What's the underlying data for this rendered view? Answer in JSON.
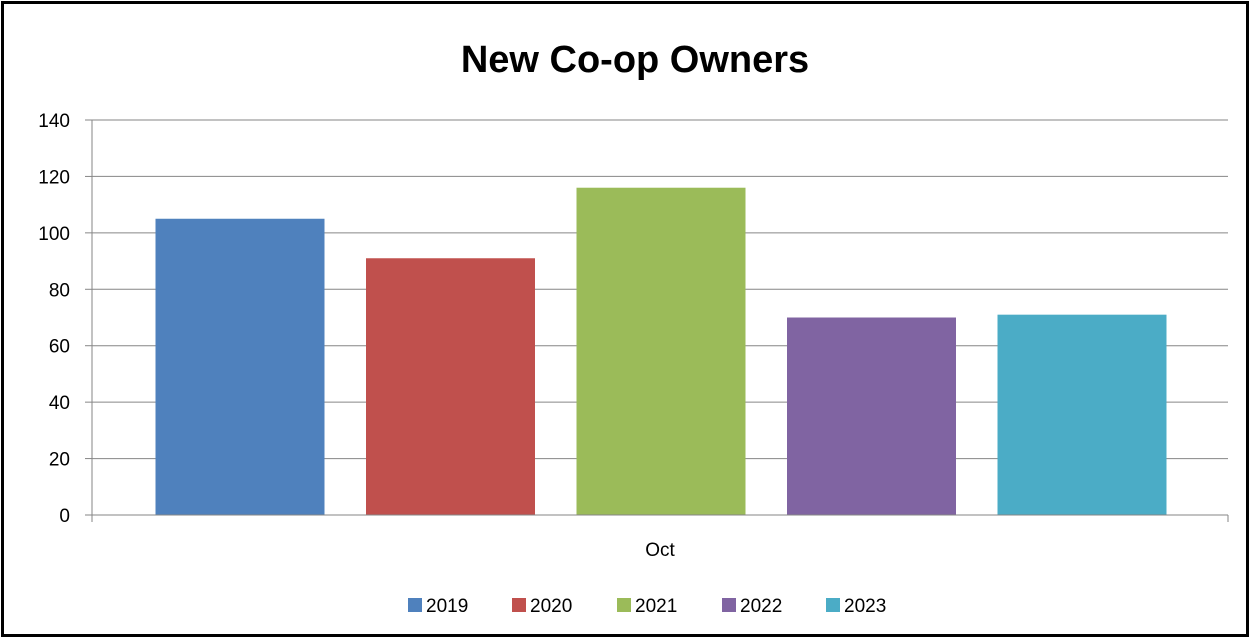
{
  "chart_data": {
    "type": "bar",
    "title": "New Co-op Owners",
    "xlabel": "",
    "ylabel": "",
    "categories": [
      "Oct"
    ],
    "series": [
      {
        "name": "2019",
        "values": [
          105
        ],
        "color": "#4F81BD"
      },
      {
        "name": "2020",
        "values": [
          91
        ],
        "color": "#C0504D"
      },
      {
        "name": "2021",
        "values": [
          116
        ],
        "color": "#9BBB59"
      },
      {
        "name": "2022",
        "values": [
          70
        ],
        "color": "#8064A2"
      },
      {
        "name": "2023",
        "values": [
          71
        ],
        "color": "#4BACC6"
      }
    ],
    "ylim": [
      0,
      140
    ],
    "yticks": [
      0,
      20,
      40,
      60,
      80,
      100,
      120,
      140
    ],
    "grid": true,
    "legend": "bottom"
  }
}
